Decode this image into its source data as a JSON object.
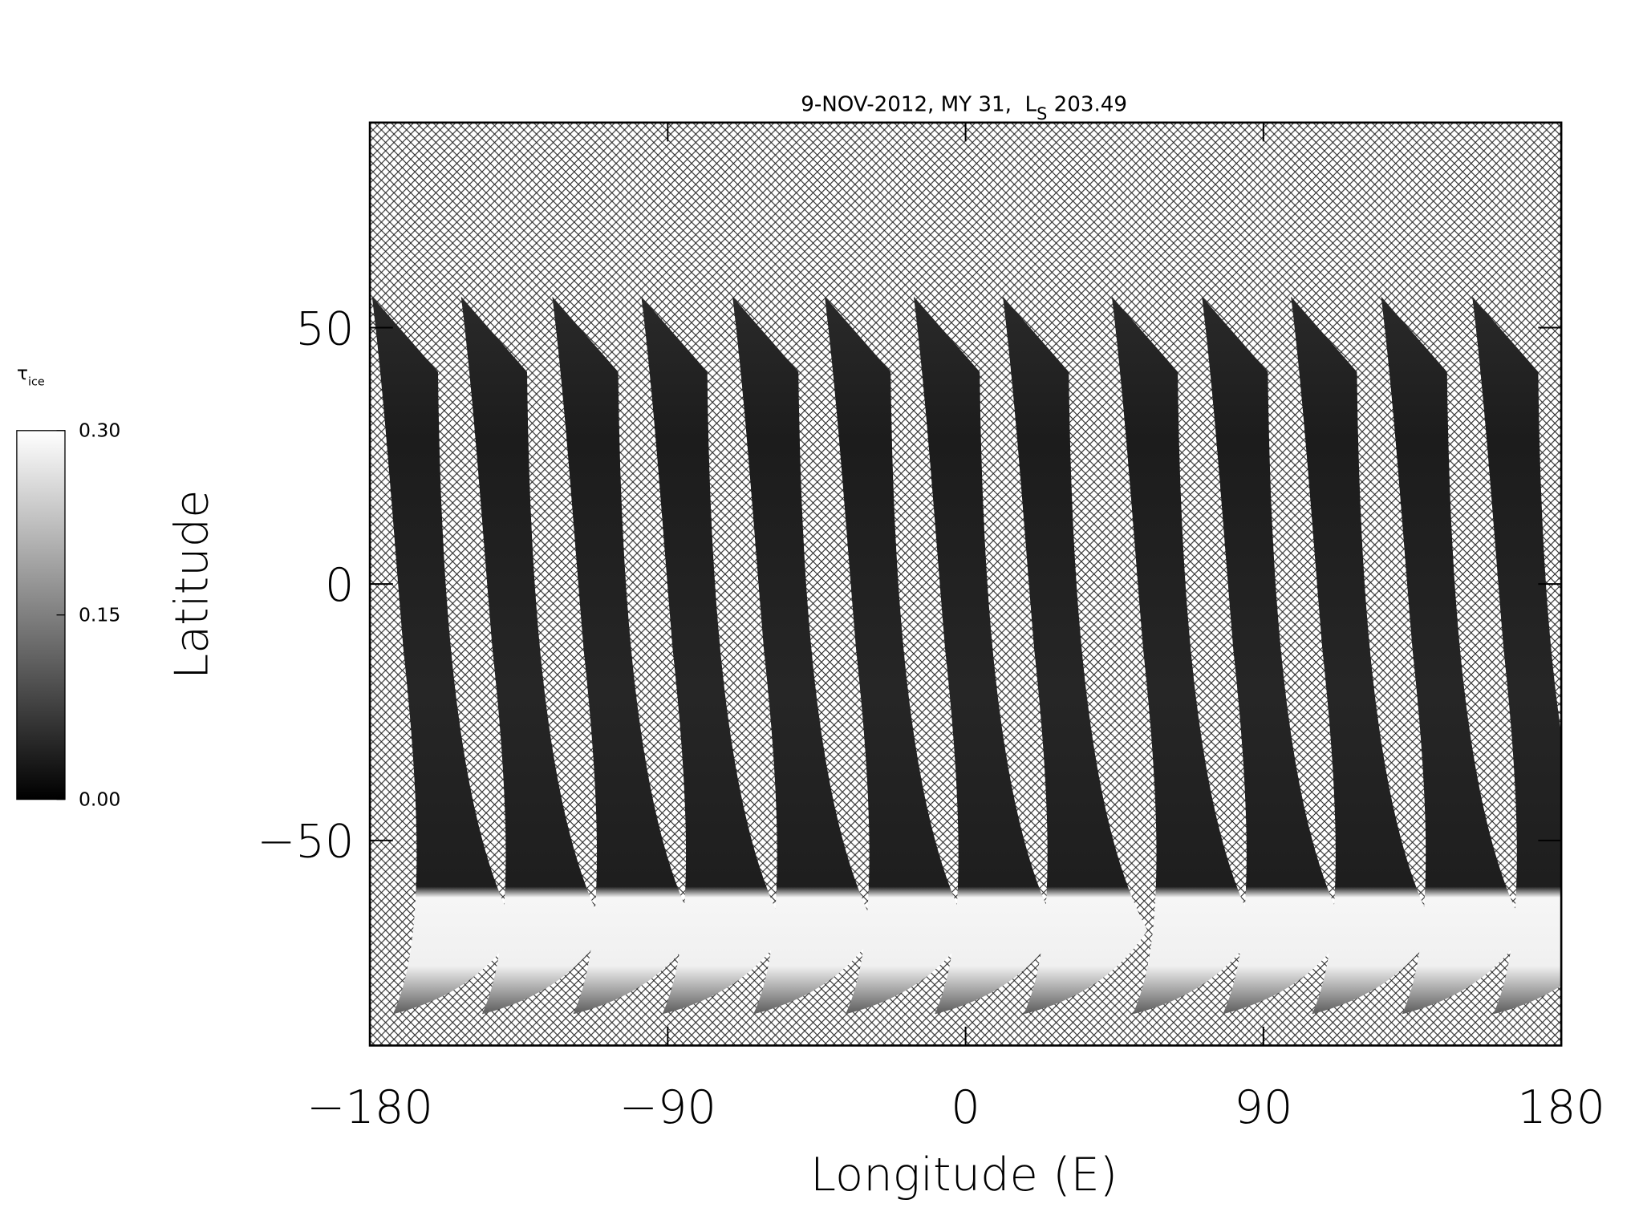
{
  "chart_data": {
    "type": "map",
    "title": [
      "9-NOV-2012, MY 31,  L",
      "S",
      " 203.49"
    ],
    "xlabel": "Longitude (E)",
    "ylabel": "Latitude",
    "xlim": [
      -180,
      180
    ],
    "ylim": [
      -90,
      90
    ],
    "xticks": [
      {
        "value": -180,
        "label": "−180"
      },
      {
        "value": -90,
        "label": "−90"
      },
      0,
      90,
      180
    ],
    "yticks": [
      {
        "value": -50,
        "label": "−50"
      },
      0,
      50
    ],
    "colorbar": {
      "label": [
        "τ",
        "ice"
      ],
      "lim": [
        0,
        0.3
      ],
      "ticks": [
        {
          "value": 0,
          "label": "0.00"
        },
        {
          "value": 0.15,
          "label": "0.15"
        },
        {
          "value": 0.3,
          "label": "0.30"
        }
      ],
      "colors": [
        "#000000",
        "#ffffff"
      ]
    }
  }
}
